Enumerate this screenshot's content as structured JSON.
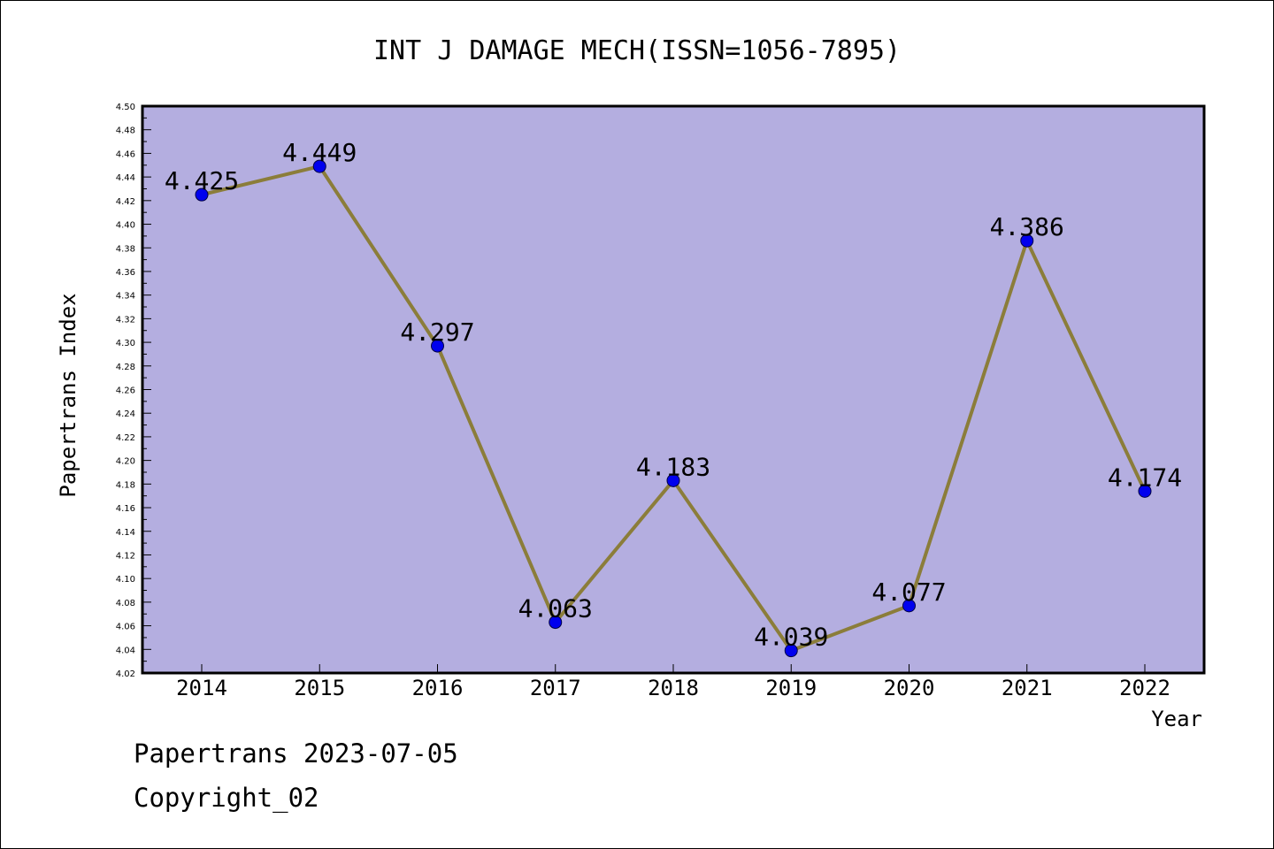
{
  "chart_data": {
    "type": "line",
    "title": "INT J DAMAGE MECH(ISSN=1056-7895)",
    "xlabel": "Year",
    "ylabel": "Papertrans Index",
    "categories": [
      "2014",
      "2015",
      "2016",
      "2017",
      "2018",
      "2019",
      "2020",
      "2021",
      "2022"
    ],
    "values": [
      4.425,
      4.449,
      4.297,
      4.063,
      4.183,
      4.039,
      4.077,
      4.386,
      4.174
    ],
    "value_labels": [
      "4.425",
      "4.449",
      "4.297",
      "4.063",
      "4.183",
      "4.039",
      "4.077",
      "4.386",
      "4.174"
    ],
    "ylim": [
      4.02,
      4.5
    ],
    "ytick_step": 0.02,
    "legend": "none",
    "grid": false,
    "colors": {
      "plot_background": "#b4aee0",
      "line": "#8b7d3a",
      "marker": "#0000ee"
    }
  },
  "footer": {
    "line1": "Papertrans 2023-07-05",
    "line2": "Copyright_02"
  }
}
